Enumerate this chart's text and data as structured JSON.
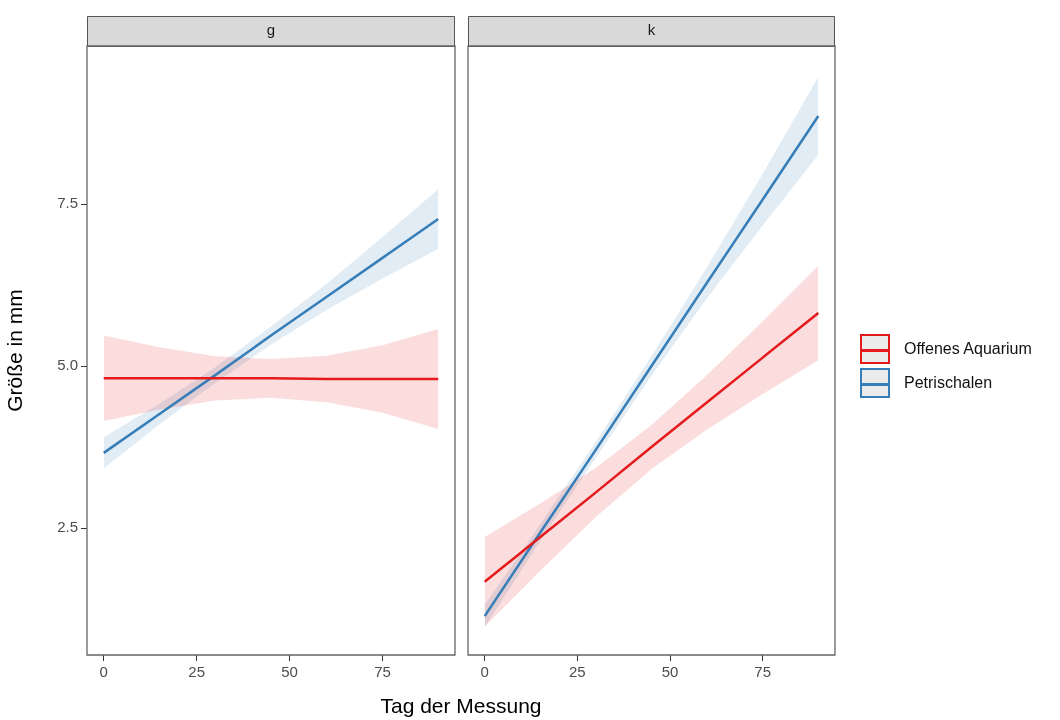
{
  "chart_data": [
    {
      "type": "line",
      "title": "g",
      "xlabel": "Tag der Messung",
      "ylabel": "Größe in mm",
      "x": [
        0,
        15,
        30,
        45,
        60,
        75,
        90
      ],
      "xlim": [
        -4.5,
        94.5
      ],
      "xticks": [
        0,
        25,
        50,
        75
      ],
      "ylim": [
        0.54,
        9.94
      ],
      "yticks": [
        2.5,
        {
          "value": 5,
          "label": "5.0"
        },
        7.5
      ],
      "grid": false,
      "legend": "right",
      "series": [
        {
          "name": "Offenes Aquarium",
          "color": "#e41a1c",
          "values": [
            4.81,
            4.81,
            4.81,
            4.81,
            4.8,
            4.8,
            4.8
          ],
          "lower": [
            4.15,
            4.33,
            4.47,
            4.51,
            4.44,
            4.28,
            4.03
          ],
          "upper": [
            5.47,
            5.29,
            5.15,
            5.11,
            5.16,
            5.32,
            5.57
          ]
        },
        {
          "name": "Petrischalen",
          "color": "#377eb8",
          "values": [
            3.66,
            4.26,
            4.86,
            5.47,
            6.07,
            6.67,
            7.27
          ],
          "lower": [
            3.42,
            4.1,
            4.74,
            5.33,
            5.87,
            6.35,
            6.81
          ],
          "upper": [
            3.9,
            4.42,
            4.98,
            5.61,
            6.27,
            6.99,
            7.73
          ]
        }
      ]
    },
    {
      "type": "line",
      "title": "k",
      "x": [
        0,
        15,
        30,
        45,
        60,
        75,
        90
      ],
      "xlim": [
        -4.5,
        94.5
      ],
      "xticks": [
        0,
        25,
        50,
        75
      ],
      "ylim": [
        0.54,
        9.94
      ],
      "tick_labels": "x",
      "grid": false,
      "series": [
        {
          "color": "#e41a1c",
          "values": [
            1.67,
            2.36,
            3.05,
            3.75,
            4.44,
            5.13,
            5.82
          ],
          "lower": [
            0.98,
            1.84,
            2.67,
            3.41,
            4.02,
            4.57,
            5.09
          ],
          "upper": [
            2.36,
            2.88,
            3.43,
            4.09,
            4.86,
            5.69,
            6.55
          ]
        },
        {
          "color": "#377eb8",
          "values": [
            1.14,
            2.43,
            3.71,
            5.0,
            6.29,
            7.57,
            8.86
          ],
          "lower": [
            0.97,
            2.3,
            3.59,
            4.85,
            6.05,
            7.17,
            8.26
          ],
          "upper": [
            1.31,
            2.56,
            3.83,
            5.15,
            6.53,
            7.97,
            9.46
          ]
        }
      ]
    }
  ]
}
